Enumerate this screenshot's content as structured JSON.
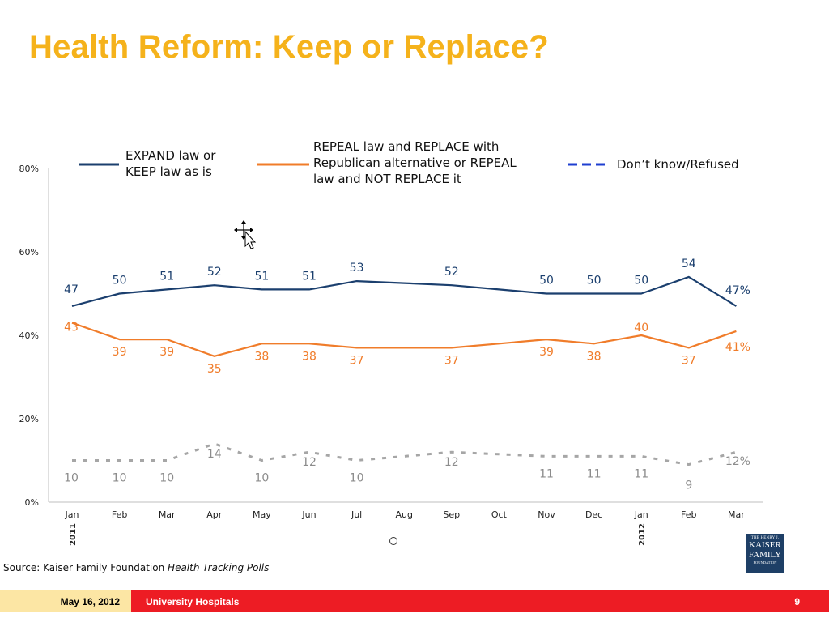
{
  "slide": {
    "title": "Health Reform: Keep or Replace?",
    "source_prefix": "Source: Kaiser Family Foundation",
    "source_italic": "Health Tracking Polls"
  },
  "logo": {
    "line1": "THE HENRY J.",
    "line2": "KAISER",
    "line3": "FAMILY",
    "line4": "FOUNDATION",
    "color": "#1E3F66"
  },
  "footer": {
    "date": "May 16, 2012",
    "organization": "University Hospitals",
    "page_number": "9",
    "date_bg": "#FCE6A4",
    "bar_color": "#ED1C24"
  },
  "chart_data": {
    "type": "line",
    "categories": [
      "Jan",
      "Feb",
      "Mar",
      "Apr",
      "May",
      "Jun",
      "Jul",
      "Aug",
      "Sep",
      "Oct",
      "Nov",
      "Dec",
      "Jan",
      "Feb",
      "Mar"
    ],
    "year_labels": [
      {
        "index": 0,
        "text": "2011"
      },
      {
        "index": 12,
        "text": "2012"
      }
    ],
    "y_ticks": [
      "0%",
      "20%",
      "40%",
      "60%",
      "80%"
    ],
    "ylim": [
      0,
      80
    ],
    "grid": false,
    "legend_position": "top",
    "series": [
      {
        "name": "EXPAND law or KEEP law as is",
        "legend_lines": [
          "EXPAND law or",
          "KEEP law as is"
        ],
        "color": "#1B3F6E",
        "dashed": false,
        "values": [
          47,
          50,
          51,
          52,
          51,
          51,
          53,
          52.5,
          52,
          51,
          50,
          50,
          50,
          54,
          47
        ],
        "labels": [
          "47",
          "50",
          "51",
          "52",
          "51",
          "51",
          "53",
          "",
          "52",
          "",
          "50",
          "50",
          "50",
          "54",
          "47%"
        ]
      },
      {
        "name": "REPEAL law and REPLACE with Republican alternative or REPEAL law and NOT REPLACE it",
        "legend_lines": [
          "REPEAL law and REPLACE with",
          "Republican alternative or REPEAL",
          "law and NOT REPLACE it"
        ],
        "color": "#F07C2A",
        "dashed": false,
        "values": [
          43,
          39,
          39,
          35,
          38,
          38,
          37,
          37,
          37,
          38,
          39,
          38,
          40,
          37,
          41
        ],
        "labels": [
          "43",
          "39",
          "39",
          "35",
          "38",
          "38",
          "37",
          "",
          "37",
          "",
          "39",
          "38",
          "40",
          "37",
          "41%"
        ]
      },
      {
        "name": "Don’t know/Refused",
        "legend_lines": [
          "Don’t know/Refused"
        ],
        "color": "#A6A6A6",
        "legend_color": "#1F3FD0",
        "dashed": true,
        "values": [
          10,
          10,
          10,
          14,
          10,
          12,
          10,
          11,
          12,
          11.5,
          11,
          11,
          11,
          9,
          12
        ],
        "labels": [
          "10",
          "10",
          "10",
          "14",
          "10",
          "12",
          "10",
          "",
          "12",
          "",
          "11",
          "11",
          "11",
          "9",
          "12%"
        ]
      }
    ]
  }
}
